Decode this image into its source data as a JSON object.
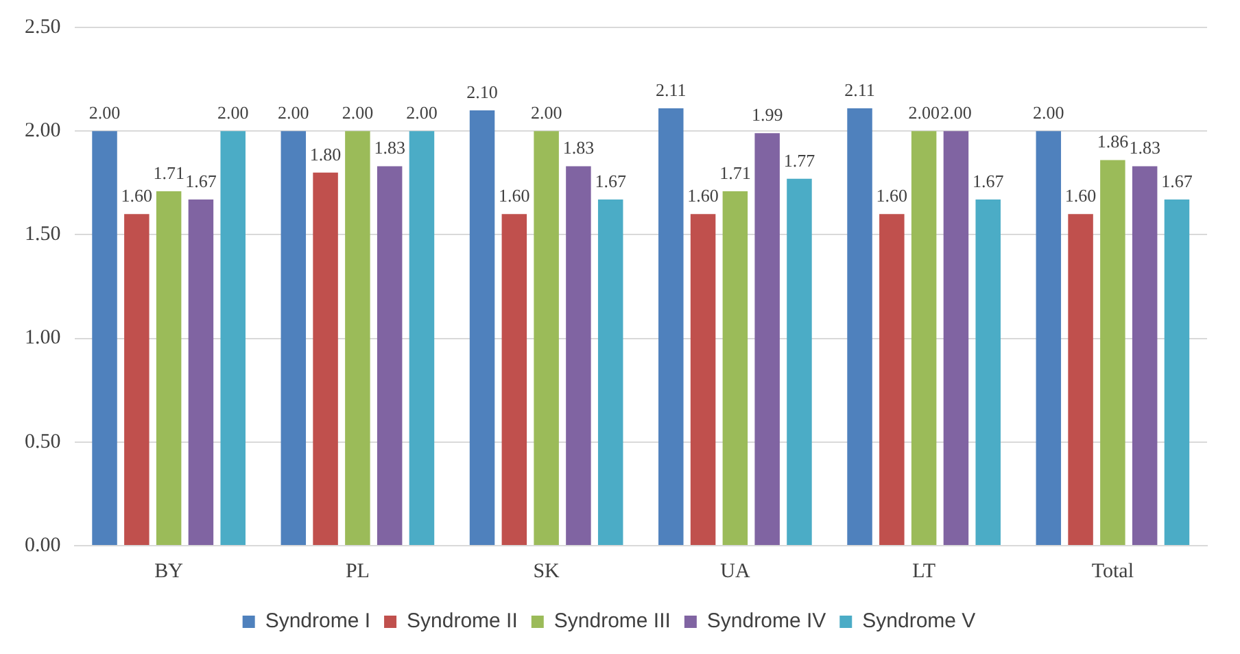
{
  "chart_data": {
    "type": "bar",
    "categories": [
      "BY",
      "PL",
      "SK",
      "UA",
      "LT",
      "Total"
    ],
    "series": [
      {
        "name": "Syndrome I",
        "color": "#4f81bd",
        "values": [
          2.0,
          2.0,
          2.1,
          2.11,
          2.11,
          2.0
        ],
        "value_labels": [
          "2.00",
          "2.00",
          "2.10",
          "2.11",
          "2.11",
          "2.00"
        ]
      },
      {
        "name": "Syndrome II",
        "color": "#c0504d",
        "values": [
          1.6,
          1.8,
          1.6,
          1.6,
          1.6,
          1.6
        ],
        "value_labels": [
          "1.60",
          "1.80",
          "1.60",
          "1.60",
          "1.60",
          "1.60"
        ]
      },
      {
        "name": "Syndrome III",
        "color": "#9bbb59",
        "values": [
          1.71,
          2.0,
          2.0,
          1.71,
          2.0,
          1.86
        ],
        "value_labels": [
          "1.71",
          "2.00",
          "2.00",
          "1.71",
          "2.00",
          "1.86"
        ]
      },
      {
        "name": "Syndrome IV",
        "color": "#8064a2",
        "values": [
          1.67,
          1.83,
          1.83,
          1.99,
          2.0,
          1.83
        ],
        "value_labels": [
          "1.67",
          "1.83",
          "1.83",
          "1.99",
          "2.00",
          "1.83"
        ]
      },
      {
        "name": "Syndrome V",
        "color": "#4bacc6",
        "values": [
          2.0,
          2.0,
          1.67,
          1.77,
          1.67,
          1.67
        ],
        "value_labels": [
          "2.00",
          "2.00",
          "1.67",
          "1.77",
          "1.67",
          "1.67"
        ]
      }
    ],
    "ylim": [
      0,
      2.5
    ],
    "yticks": [
      {
        "value": 0,
        "label": "0.00"
      },
      {
        "value": 0.5,
        "label": "0.50"
      },
      {
        "value": 1,
        "label": "1.00"
      },
      {
        "value": 1.5,
        "label": "1.50"
      },
      {
        "value": 2,
        "label": "2.00"
      },
      {
        "value": 2.5,
        "label": "2.50"
      }
    ],
    "grid": "y",
    "legend": "bottom"
  }
}
